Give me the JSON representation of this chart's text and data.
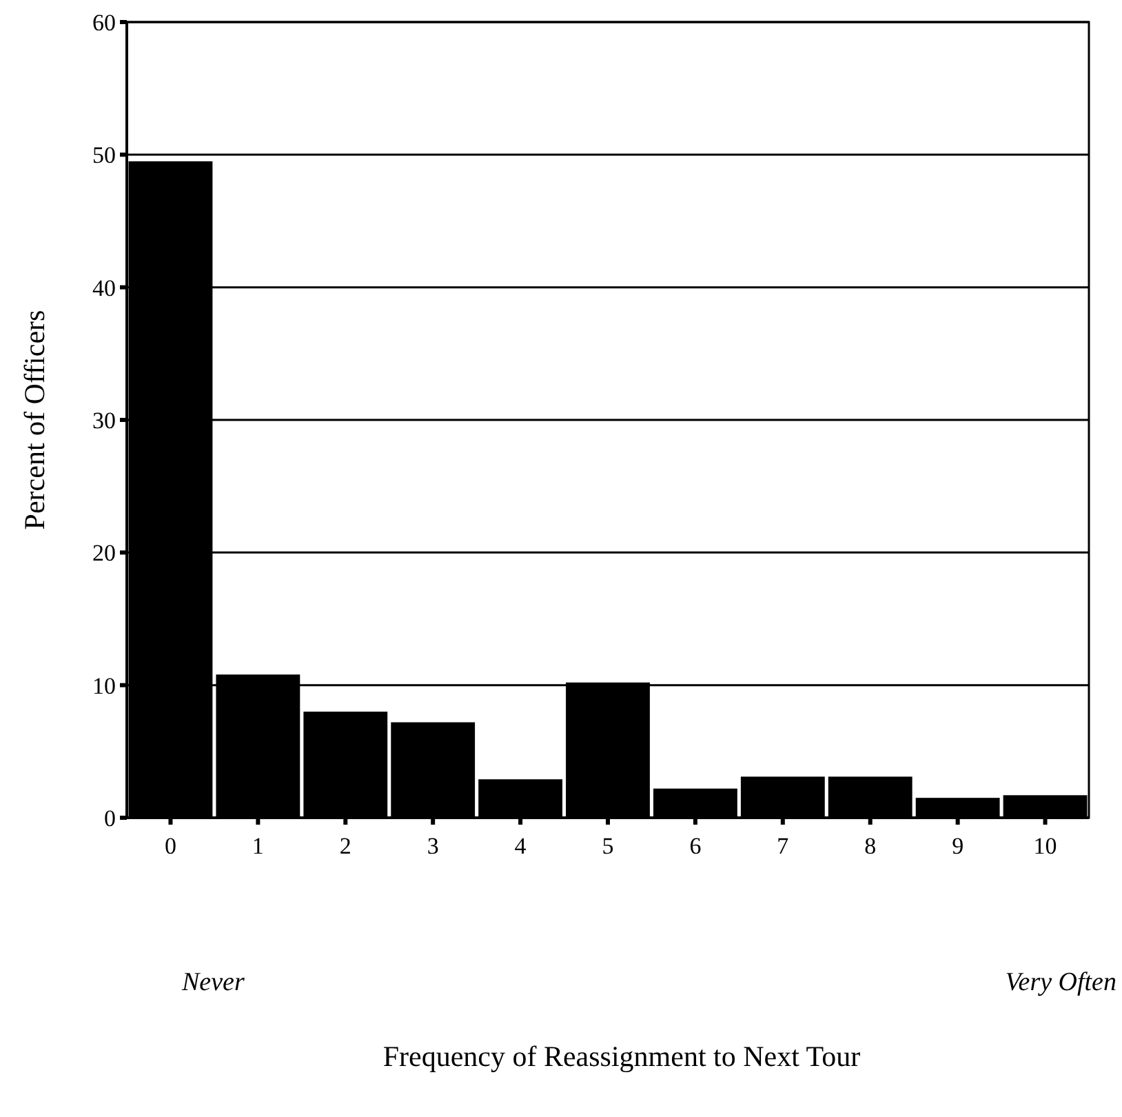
{
  "chart_data": {
    "type": "bar",
    "ylabel": "Percent of Officers",
    "categories": [
      "0",
      "1",
      "2",
      "3",
      "4",
      "5",
      "6",
      "7",
      "8",
      "9",
      "10"
    ],
    "values": [
      49.5,
      10.8,
      8.0,
      7.2,
      2.9,
      10.2,
      2.2,
      3.1,
      3.1,
      1.5,
      1.7
    ],
    "color": "#000000",
    "ylim": [
      0,
      60
    ],
    "yticks": [
      0,
      10,
      20,
      30,
      40,
      50,
      60
    ],
    "grid": "y",
    "annotations": [
      "Never",
      "Very Often",
      "Frequency of Reassignment to Next Tour"
    ]
  }
}
